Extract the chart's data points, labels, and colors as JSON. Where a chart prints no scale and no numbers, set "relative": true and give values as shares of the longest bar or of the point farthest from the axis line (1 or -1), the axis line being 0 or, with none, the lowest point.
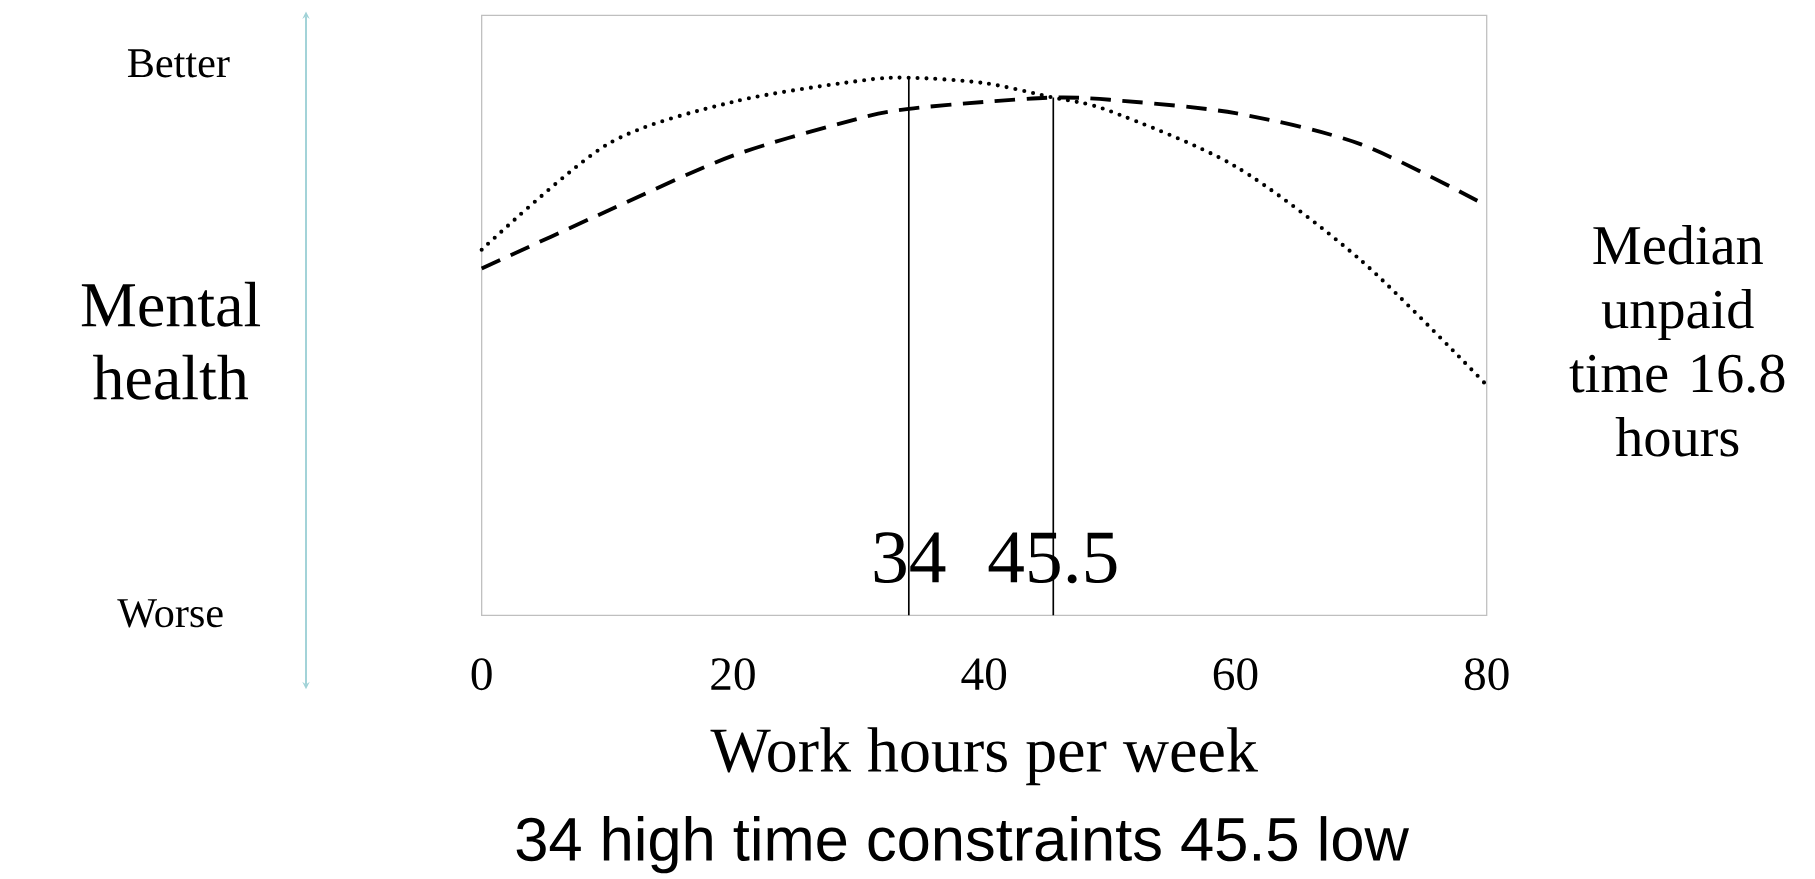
{
  "chart_data": {
    "type": "line",
    "relative": true,
    "xlabel": "Work hours per week",
    "ylabel": "Mental health",
    "x": [
      0,
      10,
      20,
      30,
      34,
      40,
      45.5,
      50,
      60,
      70,
      80
    ],
    "series": [
      {
        "color": "#000000",
        "line_style": "dotted",
        "values": [
          0.68,
          0.876,
          0.955,
          0.994,
          1.0,
          0.99,
          0.963,
          0.938,
          0.835,
          0.66,
          0.428
        ]
      },
      {
        "color": "#000000",
        "line_style": "dashed",
        "values": [
          0.645,
          0.752,
          0.855,
          0.924,
          0.942,
          0.955,
          0.963,
          0.959,
          0.934,
          0.876,
          0.762
        ]
      }
    ],
    "xlim": [
      0,
      80
    ],
    "xticks": [
      0,
      20,
      40,
      60,
      80
    ],
    "ref_lines": [
      {
        "axis": "x",
        "value": 34,
        "label": "34"
      },
      {
        "axis": "x",
        "value": 45.5,
        "label": "45.5"
      }
    ],
    "annotations": [
      "Better",
      "Worse",
      "Median unpaid time 16.8 hours",
      "34 high time constraints 45.5 low"
    ],
    "marker": "none"
  }
}
